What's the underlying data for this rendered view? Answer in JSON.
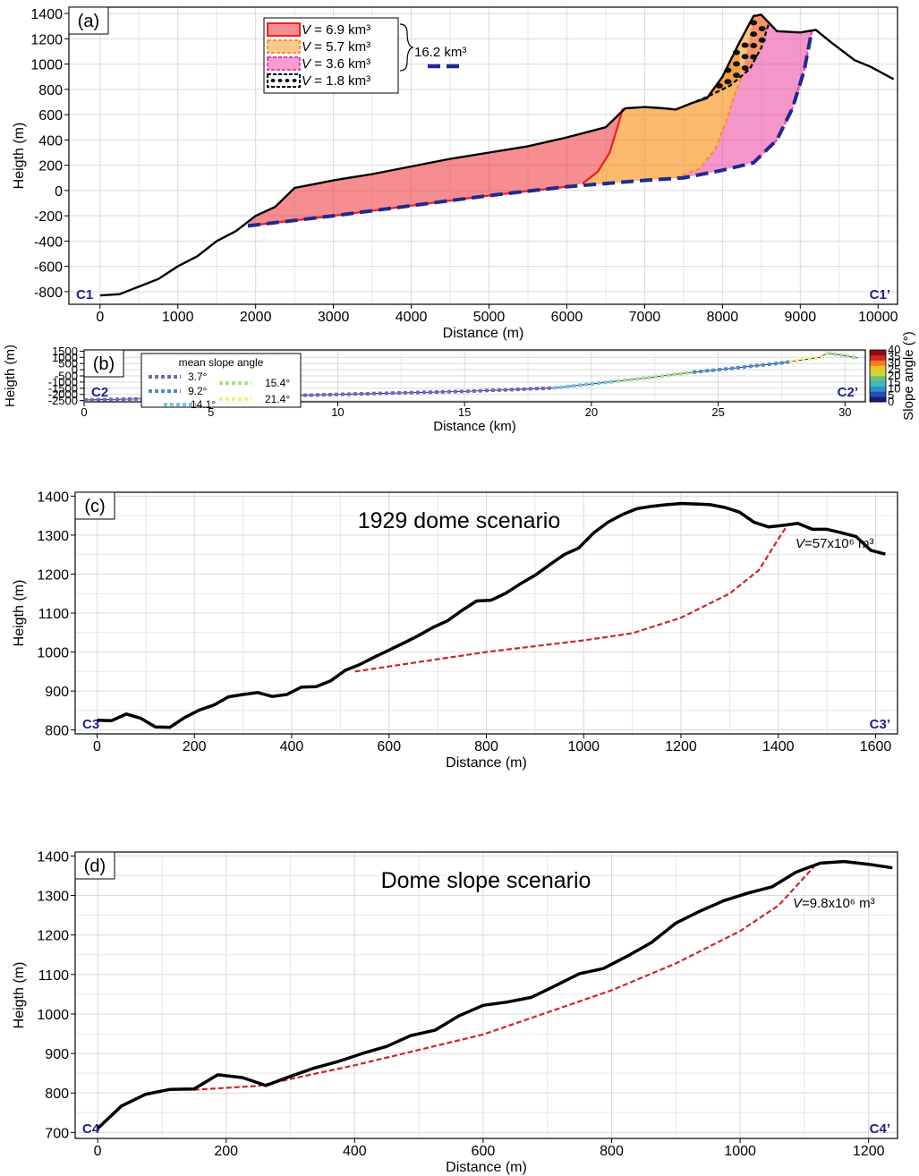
{
  "chart_data": [
    {
      "id": "a",
      "type": "area",
      "panel_label": "(a)",
      "xlabel": "Distance (m)",
      "ylabel": "Heigth (m)",
      "xlim": [
        -400,
        10250
      ],
      "ylim": [
        -900,
        1450
      ],
      "xticks": [
        0,
        1000,
        2000,
        3000,
        4000,
        5000,
        6000,
        7000,
        8000,
        9000,
        10000
      ],
      "yticks": [
        -800,
        -600,
        -400,
        -200,
        0,
        200,
        400,
        600,
        800,
        1000,
        1200,
        1400
      ],
      "section_start": "C1",
      "section_end": "C1’",
      "legend": [
        {
          "var": "V",
          "text": " = 6.9 km³",
          "color": "#ee1d24"
        },
        {
          "var": "V",
          "text": " = 5.7 km³",
          "color": "#f7941d"
        },
        {
          "var": "V",
          "text": " = 3.6 km³",
          "color": "#ec3fa1"
        },
        {
          "var": "V",
          "text": " = 1.8 km³",
          "color": "#000000"
        }
      ],
      "total_label": "16.2 km³",
      "total_color": "#1f2a8f",
      "topography": [
        [
          0,
          -830
        ],
        [
          250,
          -820
        ],
        [
          500,
          -760
        ],
        [
          750,
          -700
        ],
        [
          1000,
          -600
        ],
        [
          1250,
          -520
        ],
        [
          1500,
          -400
        ],
        [
          1750,
          -320
        ],
        [
          2000,
          -200
        ],
        [
          2250,
          -130
        ],
        [
          2500,
          20
        ],
        [
          2750,
          50
        ],
        [
          3000,
          80
        ],
        [
          3500,
          130
        ],
        [
          4000,
          190
        ],
        [
          4500,
          250
        ],
        [
          5000,
          300
        ],
        [
          5500,
          350
        ],
        [
          6000,
          420
        ],
        [
          6500,
          500
        ],
        [
          6750,
          650
        ],
        [
          7000,
          660
        ],
        [
          7250,
          650
        ],
        [
          7400,
          640
        ],
        [
          7600,
          690
        ],
        [
          7800,
          730
        ],
        [
          8000,
          900
        ],
        [
          8200,
          1150
        ],
        [
          8400,
          1380
        ],
        [
          8500,
          1390
        ],
        [
          8700,
          1260
        ],
        [
          9000,
          1250
        ],
        [
          9200,
          1270
        ],
        [
          9400,
          1170
        ],
        [
          9700,
          1030
        ],
        [
          9900,
          980
        ],
        [
          10200,
          880
        ]
      ],
      "basal_surface": [
        [
          1900,
          -280
        ],
        [
          3000,
          -200
        ],
        [
          4000,
          -120
        ],
        [
          5000,
          -40
        ],
        [
          6000,
          30
        ],
        [
          7000,
          80
        ],
        [
          7500,
          100
        ],
        [
          8000,
          160
        ],
        [
          8400,
          220
        ],
        [
          8700,
          400
        ],
        [
          8900,
          650
        ],
        [
          9050,
          950
        ],
        [
          9150,
          1270
        ]
      ],
      "failure_surfaces": [
        {
          "name": "6.9 km³",
          "color": "#ee1d24",
          "points": [
            [
              6200,
              55
            ],
            [
              6400,
              150
            ],
            [
              6550,
              300
            ],
            [
              6650,
              500
            ],
            [
              6720,
              650
            ]
          ]
        },
        {
          "name": "5.7 km³",
          "color": "#f7941d",
          "points": [
            [
              7400,
              100
            ],
            [
              7700,
              170
            ],
            [
              7900,
              320
            ],
            [
              8050,
              550
            ],
            [
              8150,
              750
            ],
            [
              8250,
              900
            ]
          ]
        },
        {
          "name": "3.6 km³",
          "color": "#ec3fa1",
          "points": [
            [
              8400,
              220
            ],
            [
              8700,
              400
            ],
            [
              8900,
              650
            ],
            [
              9050,
              950
            ],
            [
              9150,
              1270
            ]
          ]
        },
        {
          "name": "1.8 km³",
          "color": "#000000",
          "points": [
            [
              7400,
              640
            ],
            [
              7800,
              740
            ],
            [
              8100,
              830
            ],
            [
              8350,
              960
            ],
            [
              8500,
              1130
            ],
            [
              8600,
              1330
            ]
          ]
        }
      ]
    },
    {
      "id": "b",
      "type": "line",
      "panel_label": "(b)",
      "xlabel": "Distance (km)",
      "ylabel": "Heigth (m)",
      "xlim": [
        0,
        30.8
      ],
      "ylim": [
        -2600,
        1600
      ],
      "xticks": [
        0,
        5,
        10,
        15,
        20,
        25,
        30
      ],
      "yticks": [
        1500,
        1000,
        500,
        0,
        -500,
        -1000,
        -1500,
        -2000,
        -2500
      ],
      "section_start": "C2",
      "section_end": "C2’",
      "legend_title": "mean slope angle",
      "legend": [
        {
          "label": "3.7°",
          "color": "#6a6ac0"
        },
        {
          "label": "9.2°",
          "color": "#4a90c8"
        },
        {
          "label": "14.1°",
          "color": "#74c7e0"
        },
        {
          "label": "15.4°",
          "color": "#a8e08a"
        },
        {
          "label": "21.4°",
          "color": "#f0f07a"
        }
      ],
      "colorbar_label": "Slope angle (°)",
      "colorbar_ticks": [
        0,
        5,
        10,
        15,
        20,
        25,
        30,
        35,
        40
      ],
      "colorbar_colors": [
        "#1a1a7a",
        "#2a4fb0",
        "#2f90c8",
        "#3cb8c0",
        "#6cc070",
        "#c8d640",
        "#f0c020",
        "#f08020",
        "#e02020",
        "#8a1010"
      ],
      "profile": [
        [
          0,
          -2450
        ],
        [
          5,
          -2250
        ],
        [
          10,
          -2000
        ],
        [
          15,
          -1750
        ],
        [
          18.5,
          -1480
        ],
        [
          20,
          -1150
        ],
        [
          22,
          -700
        ],
        [
          24,
          -200
        ],
        [
          25.5,
          100
        ],
        [
          27.5,
          550
        ],
        [
          29,
          1000
        ],
        [
          29.3,
          1330
        ],
        [
          29.8,
          1200
        ],
        [
          30.5,
          950
        ]
      ],
      "segments": [
        {
          "label": "3.7°",
          "color": "#6a6ac0",
          "from": 0,
          "to": 18.5
        },
        {
          "label": "14.1°",
          "color": "#74c7e0",
          "from": 18.5,
          "to": 21
        },
        {
          "label": "15.4°",
          "color": "#a8e08a",
          "from": 21,
          "to": 24
        },
        {
          "label": "9.2°",
          "color": "#4a90c8",
          "from": 24,
          "to": 27.8
        },
        {
          "label": "21.4°",
          "color": "#f0f07a",
          "from": 27.8,
          "to": 29.3
        },
        {
          "label": "15.4°",
          "color": "#a8e08a",
          "from": 29.3,
          "to": 30.5
        }
      ]
    },
    {
      "id": "c",
      "type": "line",
      "panel_label": "(c)",
      "title": "1929 dome scenario",
      "volume_var": "V",
      "volume_text": "=57x10⁶ m³",
      "xlabel": "Distance (m)",
      "ylabel": "Heigth (m)",
      "xlim": [
        -45,
        1645
      ],
      "ylim": [
        790,
        1410
      ],
      "xticks": [
        0,
        200,
        400,
        600,
        800,
        1000,
        1200,
        1400,
        1600
      ],
      "yticks": [
        800,
        900,
        1000,
        1100,
        1200,
        1300,
        1400
      ],
      "section_start": "C3",
      "section_end": "C3’",
      "topography": [
        [
          0,
          825
        ],
        [
          30,
          824
        ],
        [
          60,
          841
        ],
        [
          90,
          830
        ],
        [
          120,
          808
        ],
        [
          150,
          807
        ],
        [
          180,
          832
        ],
        [
          210,
          851
        ],
        [
          240,
          864
        ],
        [
          270,
          885
        ],
        [
          300,
          891
        ],
        [
          330,
          896
        ],
        [
          360,
          886
        ],
        [
          390,
          891
        ],
        [
          420,
          910
        ],
        [
          450,
          911
        ],
        [
          480,
          926
        ],
        [
          510,
          953
        ],
        [
          540,
          968
        ],
        [
          570,
          987
        ],
        [
          600,
          1005
        ],
        [
          630,
          1023
        ],
        [
          660,
          1042
        ],
        [
          690,
          1063
        ],
        [
          720,
          1080
        ],
        [
          750,
          1107
        ],
        [
          780,
          1131
        ],
        [
          810,
          1133
        ],
        [
          840,
          1151
        ],
        [
          870,
          1175
        ],
        [
          900,
          1197
        ],
        [
          930,
          1224
        ],
        [
          960,
          1250
        ],
        [
          990,
          1267
        ],
        [
          1020,
          1305
        ],
        [
          1050,
          1333
        ],
        [
          1080,
          1353
        ],
        [
          1110,
          1368
        ],
        [
          1140,
          1374
        ],
        [
          1170,
          1378
        ],
        [
          1200,
          1381
        ],
        [
          1230,
          1380
        ],
        [
          1260,
          1378
        ],
        [
          1290,
          1371
        ],
        [
          1320,
          1359
        ],
        [
          1350,
          1333
        ],
        [
          1380,
          1321
        ],
        [
          1410,
          1325
        ],
        [
          1440,
          1330
        ],
        [
          1470,
          1315
        ],
        [
          1500,
          1315
        ],
        [
          1530,
          1306
        ],
        [
          1560,
          1296
        ],
        [
          1590,
          1261
        ],
        [
          1620,
          1251
        ]
      ],
      "failure_surface": [
        [
          530,
          950
        ],
        [
          800,
          1000
        ],
        [
          1000,
          1030
        ],
        [
          1100,
          1048
        ],
        [
          1200,
          1088
        ],
        [
          1300,
          1150
        ],
        [
          1360,
          1210
        ],
        [
          1400,
          1290
        ],
        [
          1420,
          1328
        ]
      ]
    },
    {
      "id": "d",
      "type": "line",
      "panel_label": "(d)",
      "title": "Dome slope scenario",
      "volume_var": "V",
      "volume_text": "=9.8x10⁶ m³",
      "xlabel": "Distance (m)",
      "ylabel": "Heigth (m)",
      "xlim": [
        -35,
        1245
      ],
      "ylim": [
        685,
        1410
      ],
      "xticks": [
        0,
        200,
        400,
        600,
        800,
        1000,
        1200
      ],
      "yticks": [
        700,
        800,
        900,
        1000,
        1100,
        1200,
        1300,
        1400
      ],
      "section_start": "C4",
      "section_end": "C4’",
      "topography": [
        [
          0,
          710
        ],
        [
          37,
          767
        ],
        [
          75,
          797
        ],
        [
          112,
          809
        ],
        [
          150,
          810
        ],
        [
          187,
          846
        ],
        [
          225,
          839
        ],
        [
          262,
          819
        ],
        [
          300,
          842
        ],
        [
          337,
          863
        ],
        [
          375,
          880
        ],
        [
          412,
          900
        ],
        [
          450,
          918
        ],
        [
          487,
          945
        ],
        [
          525,
          959
        ],
        [
          562,
          995
        ],
        [
          600,
          1022
        ],
        [
          637,
          1030
        ],
        [
          675,
          1042
        ],
        [
          712,
          1071
        ],
        [
          750,
          1102
        ],
        [
          787,
          1115
        ],
        [
          825,
          1147
        ],
        [
          862,
          1181
        ],
        [
          900,
          1230
        ],
        [
          937,
          1260
        ],
        [
          975,
          1287
        ],
        [
          1012,
          1306
        ],
        [
          1050,
          1322
        ],
        [
          1087,
          1359
        ],
        [
          1125,
          1382
        ],
        [
          1162,
          1386
        ],
        [
          1200,
          1379
        ],
        [
          1237,
          1370
        ]
      ],
      "failure_surface": [
        [
          150,
          808
        ],
        [
          250,
          818
        ],
        [
          400,
          870
        ],
        [
          600,
          948
        ],
        [
          800,
          1060
        ],
        [
          900,
          1128
        ],
        [
          1000,
          1210
        ],
        [
          1060,
          1275
        ],
        [
          1120,
          1382
        ]
      ]
    }
  ]
}
